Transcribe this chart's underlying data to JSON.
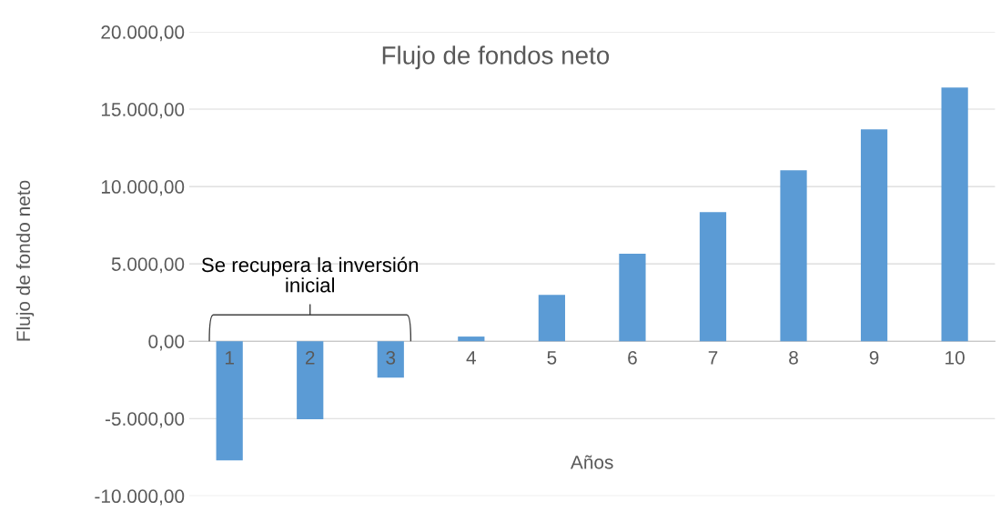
{
  "chart_data": {
    "type": "bar",
    "title": "Flujo de fondos neto",
    "xlabel": "Años",
    "ylabel": "Flujo de fondo neto",
    "categories": [
      "1",
      "2",
      "3",
      "4",
      "5",
      "6",
      "7",
      "8",
      "9",
      "10"
    ],
    "values": [
      -7700,
      -5050,
      -2350,
      300,
      3000,
      5650,
      8350,
      11050,
      13700,
      16400
    ],
    "color": "#5b9bd5",
    "ylim": [
      -10000,
      20000
    ],
    "yticks": [
      {
        "value": -10000,
        "label": "-10.000,00"
      },
      {
        "value": -5000,
        "label": "-5.000,00"
      },
      {
        "value": 0,
        "label": "0,00"
      },
      {
        "value": 5000,
        "label": "5.000,00"
      },
      {
        "value": 10000,
        "label": "10.000,00"
      },
      {
        "value": 15000,
        "label": "15.000,00"
      },
      {
        "value": 20000,
        "label": "20.000,00"
      }
    ],
    "grid": "y",
    "annotations": [
      "Se recupera la inversión\ninicial"
    ]
  }
}
